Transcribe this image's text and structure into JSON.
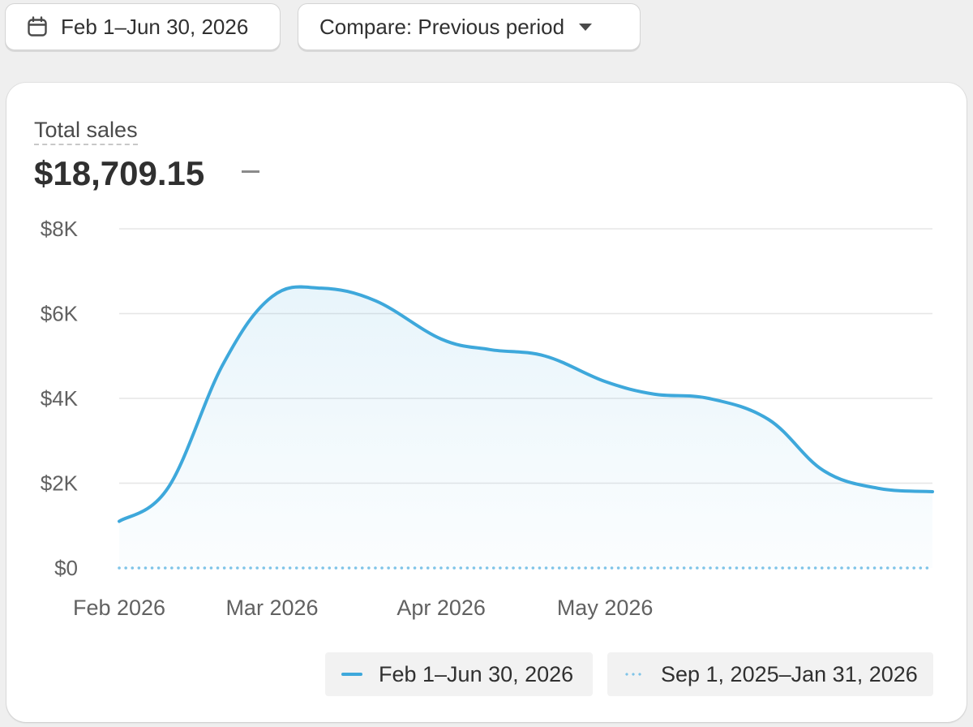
{
  "toolbar": {
    "date_range": "Feb 1–Jun 30, 2026",
    "compare": "Compare: Previous period",
    "date_icon": "calendar-icon",
    "compare_icon": "caret-down-icon"
  },
  "metric": {
    "label": "Total sales",
    "value": "$18,709.15",
    "trend": "–"
  },
  "colors": {
    "current_series": "#3ea8db",
    "previous_series": "#7fc4e8",
    "grid": "#e6e6e6"
  },
  "chart_data": {
    "type": "line",
    "x_ticks": [
      "Feb 2026",
      "Mar 2026",
      "Apr 2026",
      "May 2026"
    ],
    "y_ticks": [
      "$0",
      "$2K",
      "$4K",
      "$6K",
      "$8K"
    ],
    "ylim": [
      0,
      8000
    ],
    "grid": true,
    "legend_position": "bottom-right",
    "series": [
      {
        "name": "Feb 1–Jun 30, 2026",
        "style": "solid",
        "x": [
          "2026-02-01",
          "2026-02-10",
          "2026-02-20",
          "2026-03-01",
          "2026-03-10",
          "2026-03-20",
          "2026-04-01",
          "2026-04-10",
          "2026-04-20",
          "2026-05-01",
          "2026-05-10",
          "2026-05-20",
          "2026-05-31",
          "2026-06-10",
          "2026-06-20",
          "2026-06-30"
        ],
        "values": [
          1100,
          1900,
          4800,
          6400,
          6600,
          6300,
          5400,
          5150,
          5000,
          4400,
          4100,
          4000,
          3500,
          2300,
          1880,
          1800
        ]
      },
      {
        "name": "Sep 1, 2025–Jan 31, 2026",
        "style": "dotted",
        "x": [
          "2026-02-01",
          "2026-06-30"
        ],
        "values": [
          0,
          0
        ]
      }
    ]
  },
  "legend": {
    "current": "Feb 1–Jun 30, 2026",
    "previous": "Sep 1, 2025–Jan 31, 2026"
  }
}
